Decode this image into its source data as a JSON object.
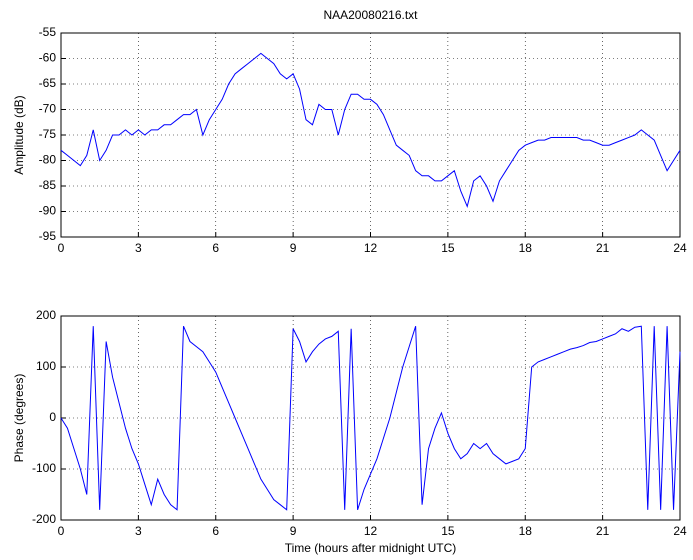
{
  "chart_data": [
    {
      "type": "line",
      "title": "NAA20080216.txt",
      "ylabel": "Amplitude (dB)",
      "color": "#0000ff",
      "grid": true,
      "xlim": [
        0,
        24
      ],
      "xticks": [
        0,
        3,
        6,
        9,
        12,
        15,
        18,
        21,
        24
      ],
      "ylim": [
        -95,
        -55
      ],
      "yticks": [
        -95,
        -90,
        -85,
        -80,
        -75,
        -70,
        -65,
        -60,
        -55
      ],
      "x": [
        0,
        0.25,
        0.5,
        0.75,
        1,
        1.25,
        1.5,
        1.75,
        2,
        2.25,
        2.5,
        2.75,
        3,
        3.25,
        3.5,
        3.75,
        4,
        4.25,
        4.5,
        4.75,
        5,
        5.25,
        5.5,
        5.75,
        6,
        6.25,
        6.5,
        6.75,
        7,
        7.25,
        7.5,
        7.75,
        8,
        8.25,
        8.5,
        8.75,
        9,
        9.25,
        9.5,
        9.75,
        10,
        10.25,
        10.5,
        10.75,
        11,
        11.25,
        11.5,
        11.75,
        12,
        12.25,
        12.5,
        12.75,
        13,
        13.25,
        13.5,
        13.75,
        14,
        14.25,
        14.5,
        14.75,
        15,
        15.25,
        15.5,
        15.75,
        16,
        16.25,
        16.5,
        16.75,
        17,
        17.25,
        17.5,
        17.75,
        18,
        18.25,
        18.5,
        18.75,
        19,
        19.25,
        19.5,
        19.75,
        20,
        20.25,
        20.5,
        20.75,
        21,
        21.25,
        21.5,
        21.75,
        22,
        22.25,
        22.5,
        22.75,
        23,
        23.25,
        23.5,
        23.75,
        24
      ],
      "values": [
        -78,
        -79,
        -80,
        -81,
        -79,
        -74,
        -80,
        -78,
        -75,
        -75,
        -74,
        -75,
        -74,
        -75,
        -74,
        -74,
        -73,
        -73,
        -72,
        -71,
        -71,
        -70,
        -75,
        -72,
        -70,
        -68,
        -65,
        -63,
        -62,
        -61,
        -60,
        -59,
        -60,
        -61,
        -63,
        -64,
        -63,
        -66,
        -72,
        -73,
        -69,
        -70,
        -70,
        -75,
        -70,
        -67,
        -67,
        -68,
        -68,
        -69,
        -71,
        -74,
        -77,
        -78,
        -79,
        -82,
        -83,
        -83,
        -84,
        -84,
        -83,
        -82,
        -86,
        -89,
        -84,
        -83,
        -85,
        -88,
        -84,
        -82,
        -80,
        -78,
        -77,
        -76.5,
        -76,
        -76,
        -75.5,
        -75.5,
        -75.5,
        -75.5,
        -75.5,
        -76,
        -76,
        -76.5,
        -77,
        -77,
        -76.5,
        -76,
        -75.5,
        -75,
        -74,
        -75,
        -76,
        -79,
        -82,
        -80,
        -78
      ]
    },
    {
      "type": "line",
      "ylabel": "Phase (degrees)",
      "xlabel": "Time (hours after midnight UTC)",
      "color": "#0000ff",
      "grid": true,
      "xlim": [
        0,
        24
      ],
      "xticks": [
        0,
        3,
        6,
        9,
        12,
        15,
        18,
        21,
        24
      ],
      "ylim": [
        -200,
        200
      ],
      "yticks": [
        -200,
        -100,
        0,
        100,
        200
      ],
      "x": [
        0,
        0.25,
        0.5,
        0.75,
        1,
        1.25,
        1.5,
        1.75,
        2,
        2.25,
        2.5,
        2.75,
        3,
        3.25,
        3.5,
        3.75,
        4,
        4.25,
        4.5,
        4.75,
        5,
        5.25,
        5.5,
        5.75,
        6,
        6.25,
        6.5,
        6.75,
        7,
        7.25,
        7.5,
        7.75,
        8,
        8.25,
        8.5,
        8.75,
        9,
        9.25,
        9.5,
        9.75,
        10,
        10.25,
        10.5,
        10.75,
        11,
        11.25,
        11.5,
        11.75,
        12,
        12.25,
        12.5,
        12.75,
        13,
        13.25,
        13.5,
        13.75,
        14,
        14.25,
        14.5,
        14.75,
        15,
        15.25,
        15.5,
        15.75,
        16,
        16.25,
        16.5,
        16.75,
        17,
        17.25,
        17.5,
        17.75,
        18,
        18.25,
        18.5,
        18.75,
        19,
        19.25,
        19.5,
        19.75,
        20,
        20.25,
        20.5,
        20.75,
        21,
        21.25,
        21.5,
        21.75,
        22,
        22.25,
        22.5,
        22.75,
        23,
        23.25,
        23.5,
        23.75,
        24
      ],
      "values": [
        0,
        -20,
        -60,
        -100,
        -150,
        180,
        -180,
        150,
        80,
        30,
        -20,
        -60,
        -90,
        -130,
        -170,
        -120,
        -150,
        -170,
        -180,
        180,
        150,
        140,
        130,
        110,
        90,
        60,
        30,
        0,
        -30,
        -60,
        -90,
        -120,
        -140,
        -160,
        -170,
        -180,
        175,
        150,
        110,
        130,
        145,
        155,
        160,
        170,
        -180,
        175,
        -180,
        -140,
        -110,
        -80,
        -40,
        0,
        50,
        100,
        140,
        180,
        -170,
        -60,
        -20,
        10,
        -30,
        -60,
        -80,
        -70,
        -50,
        -60,
        -50,
        -70,
        -80,
        -90,
        -85,
        -80,
        -60,
        100,
        110,
        115,
        120,
        125,
        130,
        135,
        138,
        142,
        148,
        150,
        155,
        160,
        165,
        175,
        170,
        178,
        180,
        -180,
        180,
        -180,
        180,
        -180,
        130
      ]
    }
  ]
}
